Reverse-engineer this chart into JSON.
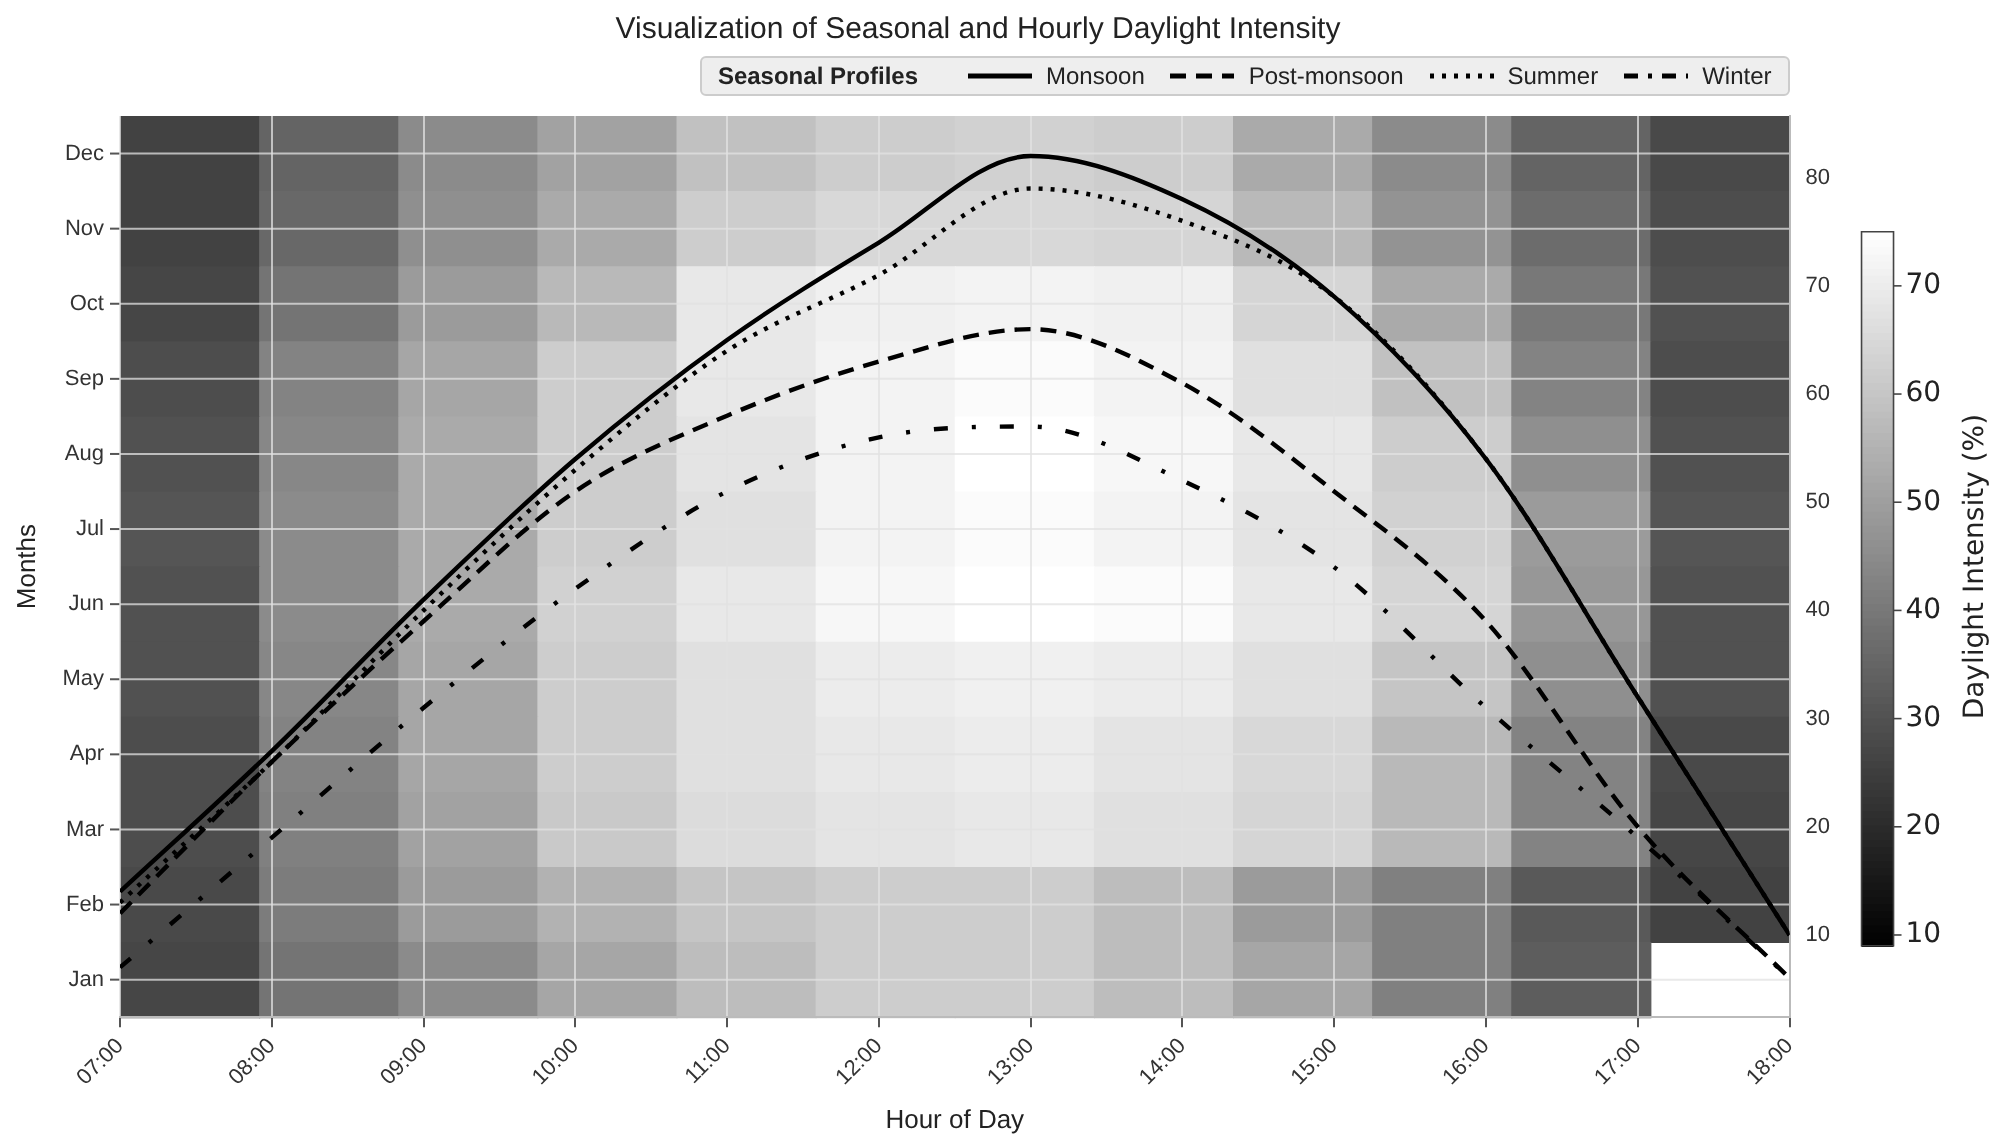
{
  "chart_data": [
    {
      "type": "heatmap",
      "ylabel": "Months",
      "clabel": "Daylight Intensity (%)",
      "grid": true,
      "categories": [
        null,
        null,
        null,
        null,
        null,
        null,
        null,
        null,
        null,
        null,
        null,
        null
      ],
      "y_categories": [
        "Dec",
        "Nov",
        "Oct",
        "Sep",
        "Aug",
        "Jul",
        "Jun",
        "May",
        "Apr",
        "Mar",
        "Feb",
        "Jan"
      ],
      "cells": [
        [
          26,
          35,
          45,
          51,
          59,
          62,
          63,
          62,
          53,
          45,
          35,
          28
        ],
        [
          26,
          36,
          46,
          53,
          62,
          65,
          65,
          64,
          57,
          47,
          37,
          29
        ],
        [
          27,
          39,
          49,
          57,
          69,
          71,
          72,
          71,
          64,
          53,
          40,
          30
        ],
        [
          29,
          43,
          52,
          62,
          69,
          72,
          74,
          72,
          67,
          59,
          43,
          29
        ],
        [
          30,
          44,
          53,
          62,
          68,
          72,
          75,
          73,
          69,
          62,
          46,
          30
        ],
        [
          31,
          45,
          53,
          62,
          67,
          72,
          74,
          72,
          68,
          63,
          49,
          31
        ],
        [
          30,
          45,
          53,
          63,
          69,
          73,
          75,
          74,
          69,
          64,
          48,
          30
        ],
        [
          30,
          44,
          52,
          62,
          67,
          70,
          71,
          70,
          67,
          60,
          46,
          30
        ],
        [
          29,
          43,
          52,
          62,
          67,
          69,
          70,
          68,
          65,
          57,
          43,
          28
        ],
        [
          29,
          42,
          51,
          61,
          66,
          68,
          69,
          67,
          64,
          57,
          43,
          27
        ],
        [
          28,
          41,
          49,
          55,
          60,
          62,
          62,
          58,
          49,
          42,
          32,
          26
        ],
        [
          27,
          39,
          45,
          52,
          58,
          62,
          62,
          58,
          52,
          42,
          33,
          null
        ]
      ],
      "clim": [
        9,
        75
      ],
      "cticks": [
        10,
        20,
        30,
        40,
        50,
        60,
        70
      ]
    },
    {
      "type": "line",
      "title": "Visualization of Seasonal and Hourly Daylight Intensity",
      "xlabel": "Hour of Day",
      "legend_title": "Seasonal Profiles",
      "legend": "top right",
      "grid": "x",
      "xlim": [
        7,
        18
      ],
      "xticks": [
        {
          "value": 7,
          "label": "07:00"
        },
        {
          "value": 8,
          "label": "08:00"
        },
        {
          "value": 9,
          "label": "09:00"
        },
        {
          "value": 10,
          "label": "10:00"
        },
        {
          "value": 11,
          "label": "11:00"
        },
        {
          "value": 12,
          "label": "12:00"
        },
        {
          "value": 13,
          "label": "13:00"
        },
        {
          "value": 14,
          "label": "14:00"
        },
        {
          "value": 15,
          "label": "15:00"
        },
        {
          "value": 16,
          "label": "16:00"
        },
        {
          "value": 17,
          "label": "17:00"
        },
        {
          "value": 18,
          "label": "18:00"
        }
      ],
      "y2lim": [
        2.4,
        85.7
      ],
      "y2ticks": [
        10,
        20,
        30,
        40,
        50,
        60,
        70,
        80
      ],
      "series": [
        {
          "name": "Monsoon",
          "type": "line",
          "axis": "y2",
          "color": "#000000",
          "line_style": "solid",
          "x": [
            7,
            8,
            9,
            10,
            11,
            12,
            13,
            14,
            15,
            16,
            17,
            18
          ],
          "values": [
            14,
            27,
            41,
            54,
            65,
            74,
            82,
            78,
            69,
            54,
            32,
            10
          ]
        },
        {
          "name": "Post-monsoon",
          "type": "line",
          "axis": "y2",
          "color": "#000000",
          "line_style": "dashed",
          "x": [
            7,
            8,
            9,
            10,
            11,
            12,
            13,
            14,
            15,
            16,
            17,
            18
          ],
          "values": [
            12,
            26,
            39,
            51,
            58,
            63,
            66,
            61,
            51,
            39,
            20,
            6
          ]
        },
        {
          "name": "Summer",
          "type": "line",
          "axis": "y2",
          "color": "#000000",
          "line_style": "dotted",
          "x": [
            7,
            8,
            9,
            10,
            11,
            12,
            13,
            14,
            15,
            16,
            17,
            18
          ],
          "values": [
            13,
            26,
            40,
            53,
            64,
            71,
            79,
            76,
            69,
            54,
            32,
            10
          ]
        },
        {
          "name": "Winter",
          "type": "line",
          "axis": "y2",
          "color": "#000000",
          "line_style": "dashdot",
          "x": [
            7,
            8,
            9,
            10,
            11,
            12,
            13,
            14,
            15,
            16,
            17,
            18
          ],
          "values": [
            7,
            19,
            31,
            42,
            51,
            56,
            57,
            52,
            44,
            31,
            19,
            6
          ]
        }
      ]
    }
  ]
}
